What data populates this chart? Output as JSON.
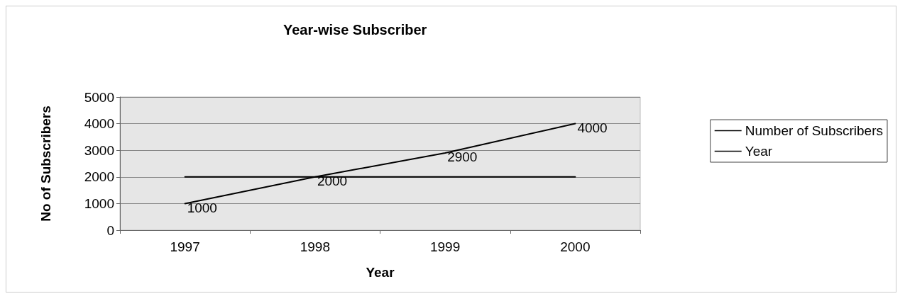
{
  "chart_data": {
    "type": "line",
    "title": "Year-wise Subscriber",
    "xlabel": "Year",
    "ylabel": "No of Subscribers",
    "categories": [
      "1997",
      "1998",
      "1999",
      "2000"
    ],
    "series": [
      {
        "name": "Number of Subscribers",
        "color": "#000000",
        "values": [
          1000,
          2000,
          2900,
          4000
        ],
        "value_labels": [
          "1000",
          "2000",
          "2900",
          "4000"
        ]
      },
      {
        "name": "Year",
        "color": "#000000",
        "values": [
          2000,
          2000,
          2000,
          2000
        ]
      }
    ],
    "ylim": [
      0,
      5000
    ],
    "yticks": [
      0,
      1000,
      2000,
      3000,
      4000,
      5000
    ],
    "grid": "y",
    "legend": "right",
    "marker": "none",
    "line_style": "solid"
  }
}
